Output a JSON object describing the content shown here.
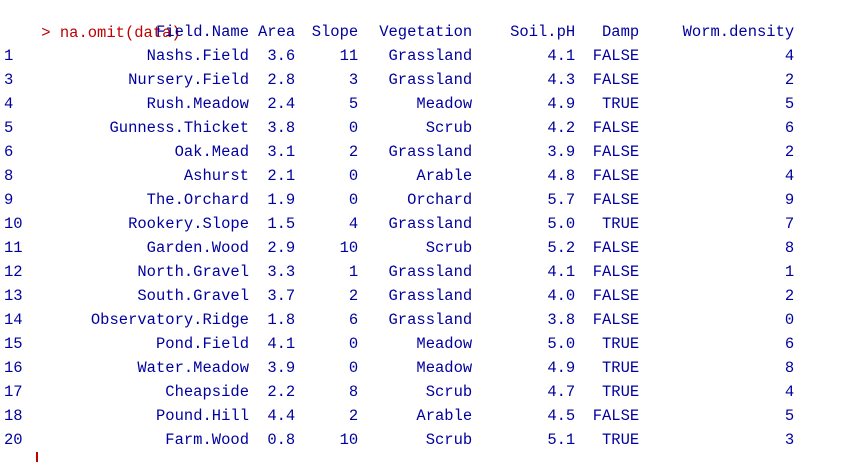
{
  "console": {
    "command_prompt": ">",
    "command_text": "na.omit(data)",
    "colors": {
      "prompt": "#c00000",
      "output": "#0000a0"
    }
  },
  "table": {
    "headers": [
      "Field.Name",
      "Area",
      "Slope",
      "Vegetation",
      "Soil.pH",
      "Damp",
      "Worm.density"
    ],
    "rows": [
      {
        "rn": "1",
        "field": "Nashs.Field",
        "area": "3.6",
        "slope": "11",
        "veg": "Grassland",
        "soil": "4.1",
        "damp": "FALSE",
        "worm": "4"
      },
      {
        "rn": "3",
        "field": "Nursery.Field",
        "area": "2.8",
        "slope": "3",
        "veg": "Grassland",
        "soil": "4.3",
        "damp": "FALSE",
        "worm": "2"
      },
      {
        "rn": "4",
        "field": "Rush.Meadow",
        "area": "2.4",
        "slope": "5",
        "veg": "Meadow",
        "soil": "4.9",
        "damp": "TRUE",
        "worm": "5"
      },
      {
        "rn": "5",
        "field": "Gunness.Thicket",
        "area": "3.8",
        "slope": "0",
        "veg": "Scrub",
        "soil": "4.2",
        "damp": "FALSE",
        "worm": "6"
      },
      {
        "rn": "6",
        "field": "Oak.Mead",
        "area": "3.1",
        "slope": "2",
        "veg": "Grassland",
        "soil": "3.9",
        "damp": "FALSE",
        "worm": "2"
      },
      {
        "rn": "8",
        "field": "Ashurst",
        "area": "2.1",
        "slope": "0",
        "veg": "Arable",
        "soil": "4.8",
        "damp": "FALSE",
        "worm": "4"
      },
      {
        "rn": "9",
        "field": "The.Orchard",
        "area": "1.9",
        "slope": "0",
        "veg": "Orchard",
        "soil": "5.7",
        "damp": "FALSE",
        "worm": "9"
      },
      {
        "rn": "10",
        "field": "Rookery.Slope",
        "area": "1.5",
        "slope": "4",
        "veg": "Grassland",
        "soil": "5.0",
        "damp": "TRUE",
        "worm": "7"
      },
      {
        "rn": "11",
        "field": "Garden.Wood",
        "area": "2.9",
        "slope": "10",
        "veg": "Scrub",
        "soil": "5.2",
        "damp": "FALSE",
        "worm": "8"
      },
      {
        "rn": "12",
        "field": "North.Gravel",
        "area": "3.3",
        "slope": "1",
        "veg": "Grassland",
        "soil": "4.1",
        "damp": "FALSE",
        "worm": "1"
      },
      {
        "rn": "13",
        "field": "South.Gravel",
        "area": "3.7",
        "slope": "2",
        "veg": "Grassland",
        "soil": "4.0",
        "damp": "FALSE",
        "worm": "2"
      },
      {
        "rn": "14",
        "field": "Observatory.Ridge",
        "area": "1.8",
        "slope": "6",
        "veg": "Grassland",
        "soil": "3.8",
        "damp": "FALSE",
        "worm": "0"
      },
      {
        "rn": "15",
        "field": "Pond.Field",
        "area": "4.1",
        "slope": "0",
        "veg": "Meadow",
        "soil": "5.0",
        "damp": "TRUE",
        "worm": "6"
      },
      {
        "rn": "16",
        "field": "Water.Meadow",
        "area": "3.9",
        "slope": "0",
        "veg": "Meadow",
        "soil": "4.9",
        "damp": "TRUE",
        "worm": "8"
      },
      {
        "rn": "17",
        "field": "Cheapside",
        "area": "2.2",
        "slope": "8",
        "veg": "Scrub",
        "soil": "4.7",
        "damp": "TRUE",
        "worm": "4"
      },
      {
        "rn": "18",
        "field": "Pound.Hill",
        "area": "4.4",
        "slope": "2",
        "veg": "Arable",
        "soil": "4.5",
        "damp": "FALSE",
        "worm": "5"
      },
      {
        "rn": "20",
        "field": "Farm.Wood",
        "area": "0.8",
        "slope": "10",
        "veg": "Scrub",
        "soil": "5.1",
        "damp": "TRUE",
        "worm": "3"
      }
    ]
  }
}
